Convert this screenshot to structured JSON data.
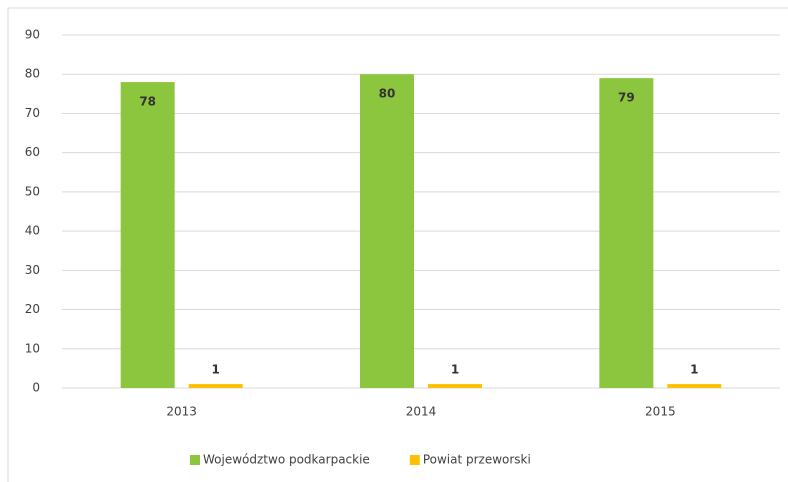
{
  "chart_data": {
    "type": "bar",
    "categories": [
      "2013",
      "2014",
      "2015"
    ],
    "series": [
      {
        "name": "Województwo podkarpackie",
        "color": "#8cc63f",
        "values": [
          78,
          80,
          79
        ]
      },
      {
        "name": "Powiat przeworski",
        "color": "#ffc000",
        "values": [
          1,
          1,
          1
        ]
      }
    ],
    "ylim": [
      0,
      90
    ],
    "yticks": [
      0,
      10,
      20,
      30,
      40,
      50,
      60,
      70,
      80,
      90
    ],
    "grid": true,
    "legend": "bottom"
  }
}
